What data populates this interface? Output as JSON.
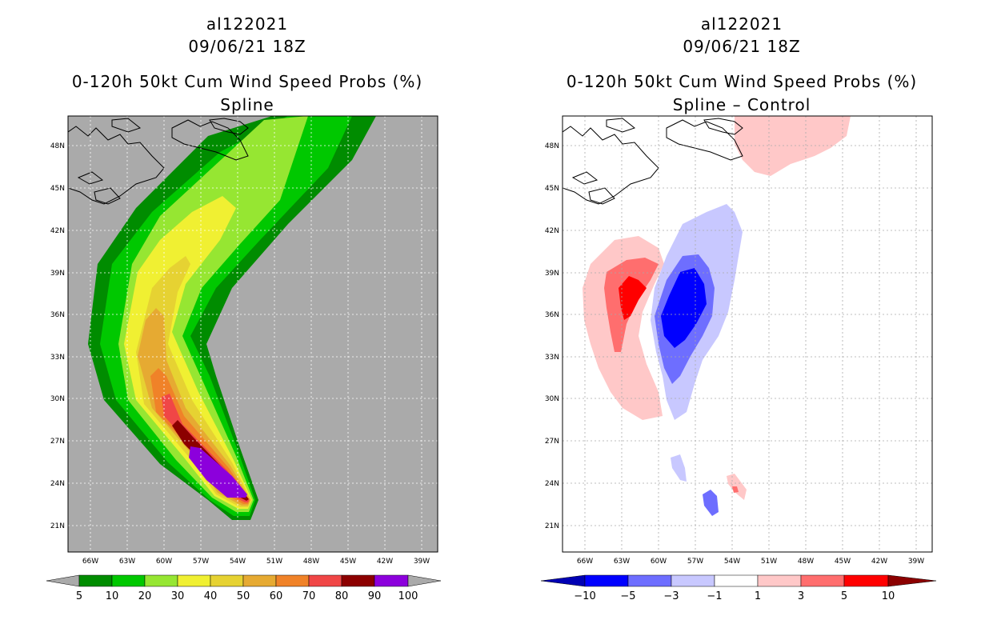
{
  "left": {
    "storm_id": "al122021",
    "datetime": "09/06/21 18Z",
    "product": "0-120h 50kt Cum Wind Speed Probs (%)",
    "subtitle": "Spline",
    "colorbar_labels": [
      "5",
      "10",
      "20",
      "30",
      "40",
      "50",
      "60",
      "70",
      "80",
      "90",
      "100"
    ],
    "colors": [
      "#008c00",
      "#00c800",
      "#96e632",
      "#f0f032",
      "#e6d232",
      "#e6aa32",
      "#f08228",
      "#f04646",
      "#8c0000",
      "#8c00dc"
    ],
    "background_color": "#aaaaaa"
  },
  "right": {
    "storm_id": "al122021",
    "datetime": "09/06/21 18Z",
    "product": "0-120h 50kt Cum Wind Speed Probs (%)",
    "subtitle": "Spline – Control",
    "colorbar_labels": [
      "−10",
      "−5",
      "−3",
      "−1",
      "1",
      "3",
      "5",
      "10"
    ],
    "colors": [
      "#0000b4",
      "#0000ff",
      "#6e6eff",
      "#c8c8ff",
      "#ffffff",
      "#ffc8c8",
      "#ff6e6e",
      "#ff0000",
      "#8c0000"
    ]
  },
  "axes": {
    "lat_labels": [
      "48N",
      "45N",
      "42N",
      "39N",
      "36N",
      "33N",
      "30N",
      "27N",
      "24N",
      "21N"
    ],
    "lon_labels": [
      "66W",
      "63W",
      "60W",
      "57W",
      "54W",
      "51W",
      "48W",
      "45W",
      "42W",
      "39W"
    ]
  }
}
